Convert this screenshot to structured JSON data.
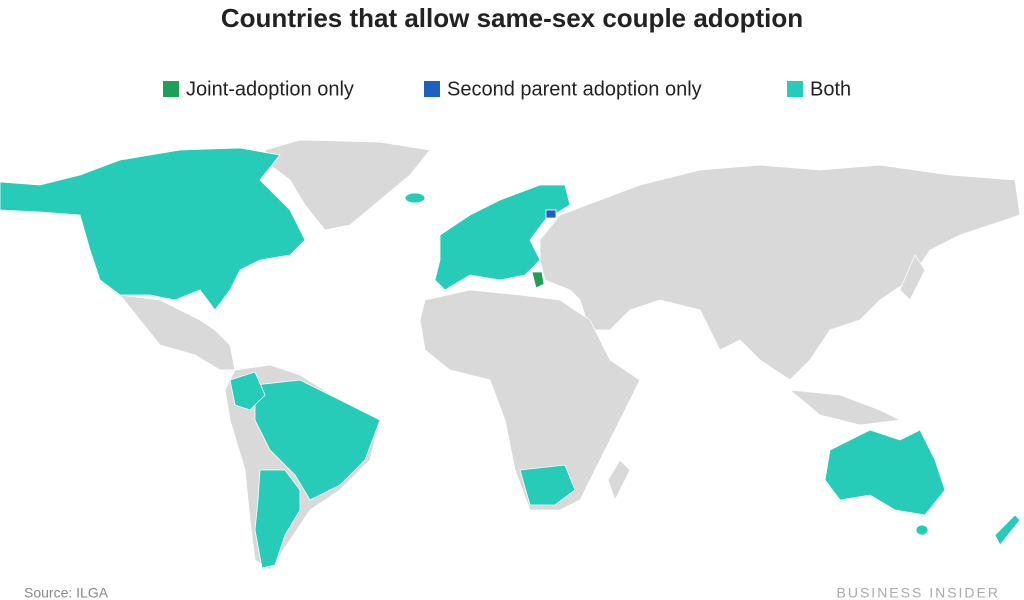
{
  "title": "Countries that allow same-sex couple adoption",
  "legend": [
    {
      "name": "Joint-adoption only",
      "color": "#1f9e5a"
    },
    {
      "name": "Second parent adoption only",
      "color": "#1f5fbf"
    },
    {
      "name": "Both",
      "color": "#26ccb8"
    }
  ],
  "source": "Source: ILGA",
  "brand": "BUSINESS INSIDER"
}
